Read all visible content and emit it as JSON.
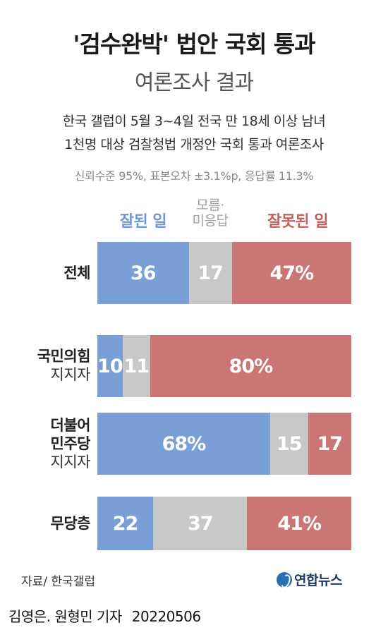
{
  "title": "'검수완박' 법안 국회 통과",
  "subtitle": "여론조사 결과",
  "desc_line1": "한국 갤럽이 5월 3~4일 전국 만 18세 이상 남녀",
  "desc_line2": "1천명 대상 검찰청법 개정안 국회 통과 여론조사",
  "note": "신뢰수준 95%, 표본오차 ±3.1%p, 응답률 11.3%",
  "source": "자료/ 한국갤럽",
  "logo_text": "연합뉴스",
  "byline": "김영은. 원형민 기자",
  "date": "20220506",
  "colors": {
    "positive": "#7a9fd6",
    "neutral": "#c8c8c8",
    "negative": "#c97674"
  },
  "chart_data": {
    "type": "bar",
    "stacked": true,
    "orientation": "horizontal",
    "legend": [
      {
        "name": "잘된 일",
        "color": "#6f98d3"
      },
      {
        "name_line1": "모름·",
        "name_line2": "미응답",
        "color": "#a8a8a8"
      },
      {
        "name": "잘못된 일",
        "color": "#c2605e"
      }
    ],
    "rows": [
      {
        "label": "전체",
        "sub": "",
        "values": [
          36,
          17,
          47
        ],
        "labels": [
          "36",
          "17",
          "47%"
        ]
      },
      {
        "label": "국민의힘",
        "sub": "지지자",
        "values": [
          10,
          11,
          80
        ],
        "labels": [
          "10",
          "11",
          "80%"
        ]
      },
      {
        "label_line1": "더불어",
        "label_line2": "민주당",
        "sub": "지지자",
        "values": [
          68,
          15,
          17
        ],
        "labels": [
          "68%",
          "15",
          "17"
        ]
      },
      {
        "label": "무당층",
        "sub": "",
        "values": [
          22,
          37,
          41
        ],
        "labels": [
          "22",
          "37",
          "41%"
        ]
      }
    ]
  }
}
